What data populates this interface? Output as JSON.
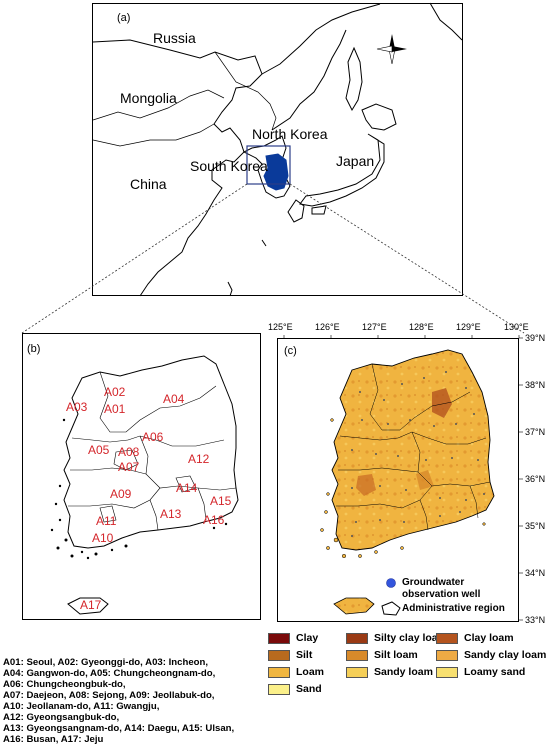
{
  "panel_a": {
    "label": "(a)",
    "countries": [
      "Russia",
      "Mongolia",
      "North Korea",
      "South Korea",
      "Japan",
      "China"
    ]
  },
  "panel_b": {
    "label": "(b)",
    "regions": [
      "A01",
      "A02",
      "A03",
      "A04",
      "A05",
      "A06",
      "A07",
      "A08",
      "A09",
      "A10",
      "A11",
      "A12",
      "A13",
      "A14",
      "A15",
      "A16",
      "A17"
    ]
  },
  "panel_c": {
    "label": "(c)",
    "lon_ticks": [
      "125°E",
      "126°E",
      "127°E",
      "128°E",
      "129°E",
      "130°E"
    ],
    "lat_ticks": [
      "39°N",
      "38°N",
      "37°N",
      "36°N",
      "35°N",
      "34°N",
      "33°N"
    ],
    "legend": {
      "well_line1": "Groundwater",
      "well_line2": "observation well",
      "admin": "Administrative region"
    }
  },
  "region_codes": [
    "A01: Seoul, A02: Gyeonggi-do, A03: Incheon,",
    "A04: Gangwon-do, A05: Chungcheongnam-do,",
    "A06: Chungcheongbuk-do,",
    "A07: Daejeon, A08: Sejong, A09: Jeollabuk-do,",
    "A10: Jeollanam-do, A11: Gwangju,",
    "A12: Gyeongsangbuk-do,",
    "A13: Gyeongsangnam-do, A14: Daegu, A15: Ulsan,",
    "A16: Busan, A17: Jeju"
  ],
  "soil_legend": [
    {
      "label": "Clay",
      "color": "#7a0a0a"
    },
    {
      "label": "Silty clay loam",
      "color": "#9a3a14"
    },
    {
      "label": "Clay loam",
      "color": "#b4541e"
    },
    {
      "label": "Silt",
      "color": "#b86a1e"
    },
    {
      "label": "Silt loam",
      "color": "#d88a2a"
    },
    {
      "label": "Sandy clay loam",
      "color": "#eeaa44"
    },
    {
      "label": "Loam",
      "color": "#f0b640"
    },
    {
      "label": "Sandy loam",
      "color": "#f5cf58"
    },
    {
      "label": "Loamy sand",
      "color": "#f8e070"
    },
    {
      "label": "Sand",
      "color": "#fbf08a"
    }
  ],
  "colors": {
    "korea_fill": "#0a3a9a",
    "soil_base": "#f0b440",
    "label_red": "#d4262b",
    "well_dot": "#3355dd"
  }
}
